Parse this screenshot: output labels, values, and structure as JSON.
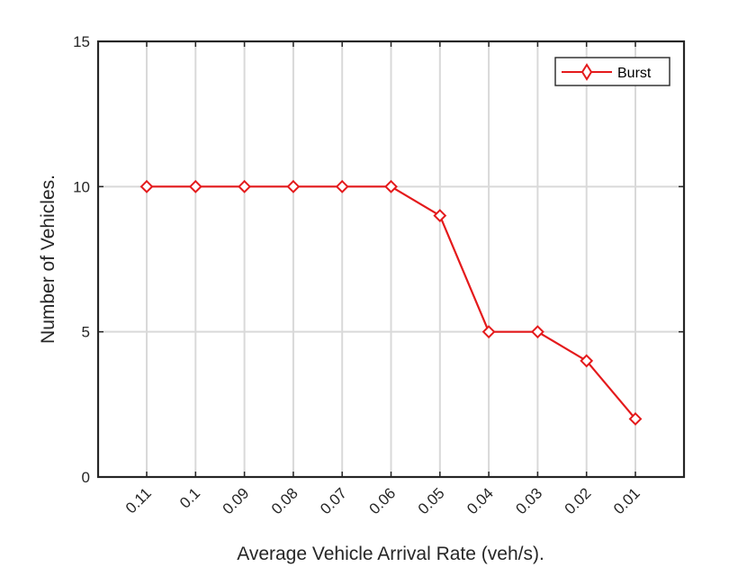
{
  "chart_data": {
    "type": "line",
    "title": "",
    "xlabel": "Average Vehicle Arrival Rate (veh/s).",
    "ylabel": "Number of Vehicles.",
    "categories": [
      "0.11",
      "0.1",
      "0.09",
      "0.08",
      "0.07",
      "0.06",
      "0.05",
      "0.04",
      "0.03",
      "0.02",
      "0.01"
    ],
    "series": [
      {
        "name": "Burst",
        "values": [
          10,
          10,
          10,
          10,
          10,
          10,
          9,
          5,
          5,
          4,
          2
        ],
        "color": "#e41a1c",
        "marker": "diamond"
      }
    ],
    "ylim": [
      0,
      15
    ],
    "yticks": [
      "0",
      "5",
      "10",
      "15"
    ],
    "grid": true,
    "legend": "top-right"
  }
}
